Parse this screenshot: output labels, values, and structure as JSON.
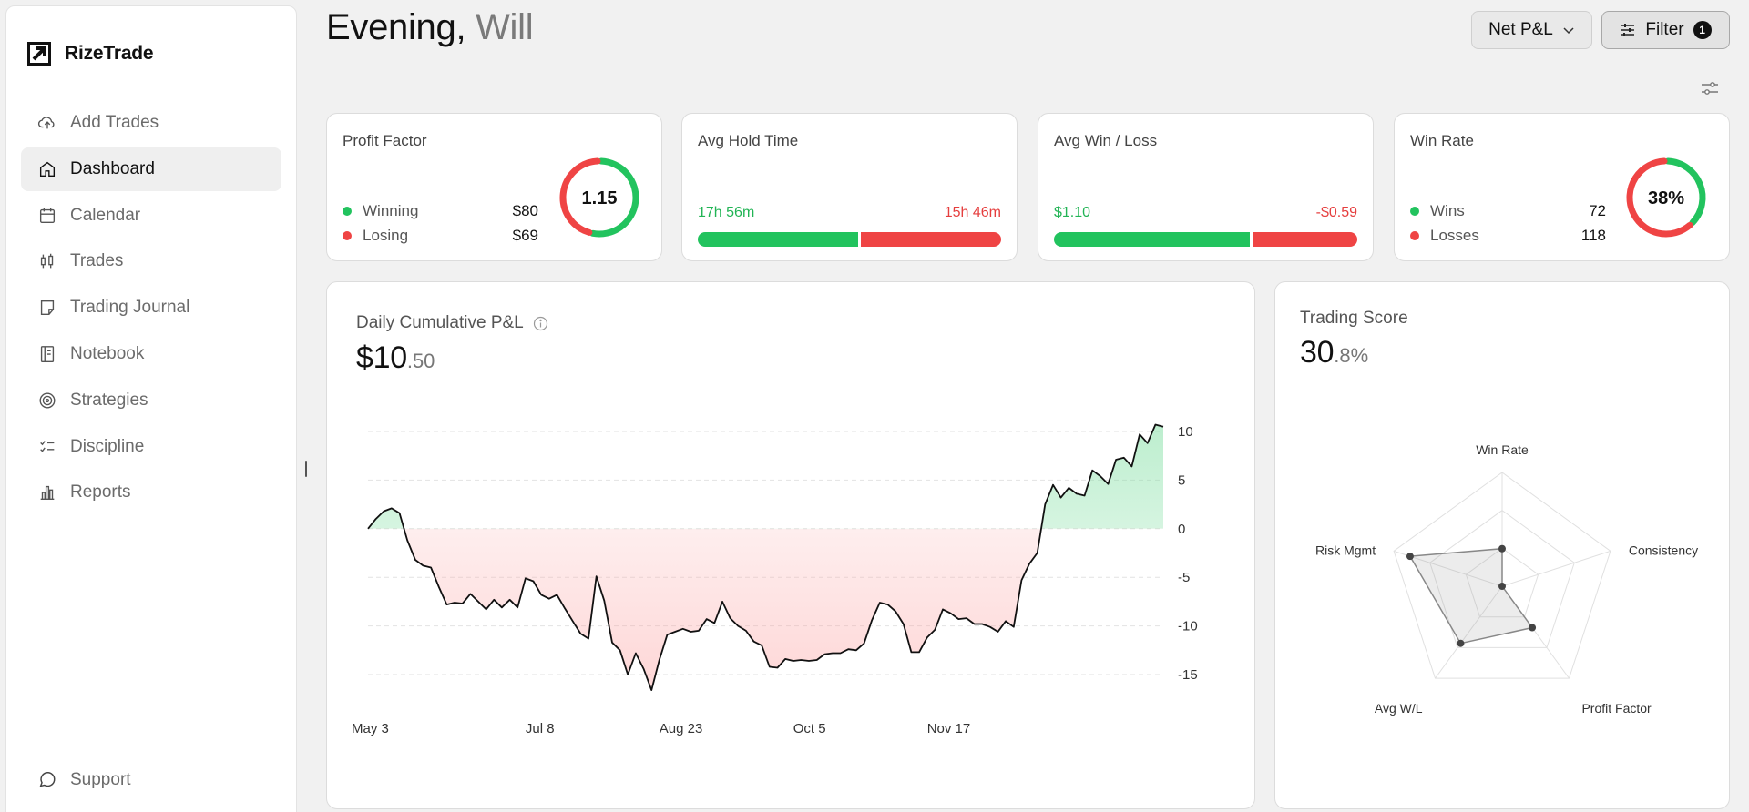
{
  "app": {
    "name": "RizeTrade"
  },
  "sidebar": {
    "items": [
      {
        "label": "Add Trades",
        "icon": "cloud-upload-icon"
      },
      {
        "label": "Dashboard",
        "icon": "home-icon",
        "active": true
      },
      {
        "label": "Calendar",
        "icon": "calendar-icon"
      },
      {
        "label": "Trades",
        "icon": "candlestick-icon"
      },
      {
        "label": "Trading Journal",
        "icon": "note-icon"
      },
      {
        "label": "Notebook",
        "icon": "notebook-icon"
      },
      {
        "label": "Strategies",
        "icon": "target-icon"
      },
      {
        "label": "Discipline",
        "icon": "checklist-icon"
      },
      {
        "label": "Reports",
        "icon": "bar-chart-icon"
      }
    ],
    "support": {
      "label": "Support",
      "icon": "chat-bubble-icon"
    }
  },
  "header": {
    "greeting": "Evening,",
    "user_name": "Will",
    "pnl_dropdown": "Net P&L",
    "filter_label": "Filter",
    "filter_count": "1"
  },
  "stats": {
    "profit_factor": {
      "title": "Profit Factor",
      "value": "1.15",
      "winning_label": "Winning",
      "winning_value": "$80",
      "losing_label": "Losing",
      "losing_value": "$69",
      "win_share": 0.537
    },
    "avg_hold_time": {
      "title": "Avg Hold Time",
      "win_value": "17h 56m",
      "loss_value": "15h 46m",
      "win_share": 0.532
    },
    "avg_win_loss": {
      "title": "Avg Win / Loss",
      "win_value": "$1.10",
      "loss_value": "-$0.59",
      "win_share": 0.651
    },
    "win_rate": {
      "title": "Win Rate",
      "value": "38%",
      "wins_label": "Wins",
      "wins_value": "72",
      "losses_label": "Losses",
      "losses_value": "118",
      "win_share": 0.379
    }
  },
  "colors": {
    "win": "#22c35e",
    "loss": "#ef4444",
    "line": "#111111"
  },
  "pnl_card": {
    "title": "Daily Cumulative P&L",
    "info_icon": "info-icon",
    "value_main": "$10",
    "value_frac": ".50"
  },
  "score_card": {
    "title": "Trading Score",
    "value_main": "30",
    "value_frac": ".8%"
  },
  "chart_data": [
    {
      "type": "area",
      "title": "Daily Cumulative P&L",
      "x_tick_labels": [
        "May 3",
        "Jul 8",
        "Aug 23",
        "Oct 5",
        "Nov 17"
      ],
      "x_tick_index": [
        0,
        20,
        37,
        54,
        71
      ],
      "y_ticks": [
        10,
        5,
        0,
        -5,
        -10,
        -15
      ],
      "ylim": [
        -15,
        10
      ],
      "grid": true,
      "series": [
        {
          "values": [
            0.0,
            1.0,
            1.8,
            2.1,
            1.6,
            -1.2,
            -3.2,
            -3.8,
            -4.0,
            -6.0,
            -7.8,
            -7.6,
            -7.7,
            -6.7,
            -7.5,
            -8.3,
            -7.3,
            -8.1,
            -7.3,
            -8.1,
            -5.1,
            -5.4,
            -6.8,
            -7.2,
            -6.8,
            -8.2,
            -9.5,
            -10.8,
            -11.3,
            -4.9,
            -7.4,
            -11.7,
            -12.5,
            -15.0,
            -12.8,
            -14.4,
            -16.6,
            -13.5,
            -10.9,
            -10.6,
            -10.3,
            -10.6,
            -10.5,
            -9.3,
            -9.7,
            -7.5,
            -9.2,
            -10.0,
            -10.5,
            -11.6,
            -12.0,
            -14.2,
            -14.3,
            -13.4,
            -13.6,
            -13.5,
            -13.6,
            -13.5,
            -12.9,
            -12.8,
            -12.8,
            -12.4,
            -12.5,
            -11.8,
            -9.4,
            -7.6,
            -7.8,
            -8.5,
            -9.8,
            -12.7,
            -12.7,
            -11.2,
            -10.4,
            -8.3,
            -8.7,
            -9.3,
            -9.2,
            -9.8,
            -9.8,
            -10.1,
            -10.6,
            -9.5,
            -10.1,
            -5.3,
            -3.6,
            -2.5,
            2.5,
            4.5,
            3.2,
            4.2,
            3.6,
            3.4,
            6.0,
            5.4,
            4.6,
            7.1,
            7.3,
            6.4,
            9.7,
            8.8,
            10.7,
            10.5
          ]
        }
      ]
    },
    {
      "type": "radar",
      "title": "Trading Score",
      "categories": [
        "Win Rate",
        "Consistency",
        "Profit Factor",
        "Avg W/L",
        "Risk Mgmt"
      ],
      "values": [
        0.33,
        0.0,
        0.45,
        0.62,
        0.85
      ],
      "ylim": [
        0,
        1
      ]
    }
  ]
}
